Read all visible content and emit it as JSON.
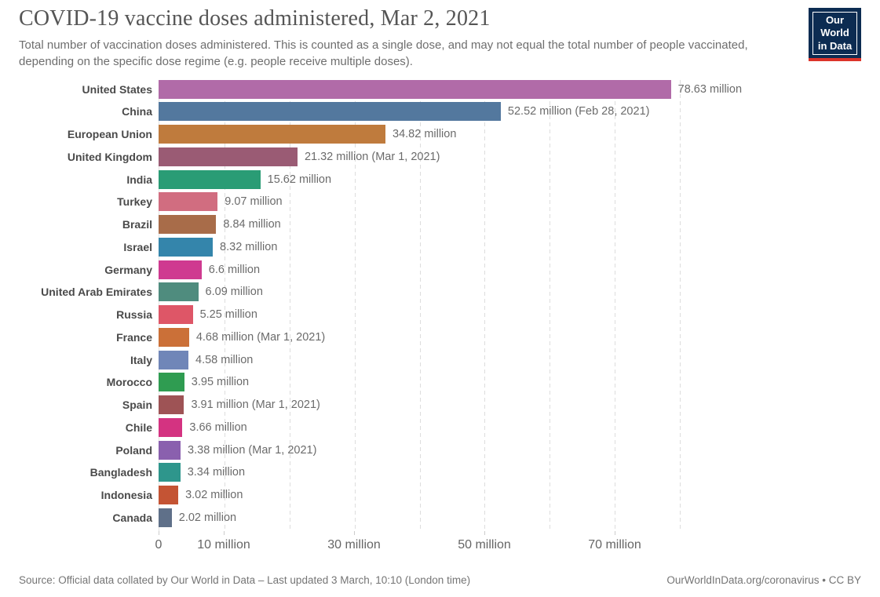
{
  "header": {
    "title": "COVID-19 vaccine doses administered, Mar 2, 2021",
    "subtitle": "Total number of vaccination doses administered. This is counted as a single dose, and may not equal the total number of people vaccinated, depending on the specific dose regime (e.g. people receive multiple doses).",
    "logo": {
      "line1": "Our World",
      "line2": "in Data",
      "bg_color": "#0c2c52",
      "accent_color": "#dc342a"
    }
  },
  "chart_data": {
    "type": "bar",
    "orientation": "horizontal",
    "title": "COVID-19 vaccine doses administered, Mar 2, 2021",
    "unit": "million doses",
    "xlim": [
      0,
      80
    ],
    "grid": "dashed vertical every 10 million",
    "x_ticks": [
      {
        "value": 0,
        "label": "0"
      },
      {
        "value": 10,
        "label": "10 million"
      },
      {
        "value": 30,
        "label": "30 million"
      },
      {
        "value": 50,
        "label": "50 million"
      },
      {
        "value": 70,
        "label": "70 million"
      }
    ],
    "series": [
      {
        "country": "United States",
        "value": 78.63,
        "label": "78.63 million",
        "color": "#b16ba8"
      },
      {
        "country": "China",
        "value": 52.52,
        "label": "52.52 million (Feb 28, 2021)",
        "color": "#53789e"
      },
      {
        "country": "European Union",
        "value": 34.82,
        "label": "34.82 million",
        "color": "#bf7b3d"
      },
      {
        "country": "United Kingdom",
        "value": 21.32,
        "label": "21.32 million (Mar 1, 2021)",
        "color": "#9a5b74"
      },
      {
        "country": "India",
        "value": 15.62,
        "label": "15.62 million",
        "color": "#2a9c75"
      },
      {
        "country": "Turkey",
        "value": 9.07,
        "label": "9.07 million",
        "color": "#d16d80"
      },
      {
        "country": "Brazil",
        "value": 8.84,
        "label": "8.84 million",
        "color": "#a86c49"
      },
      {
        "country": "Israel",
        "value": 8.32,
        "label": "8.32 million",
        "color": "#3485ab"
      },
      {
        "country": "Germany",
        "value": 6.6,
        "label": "6.6 million",
        "color": "#cf3a90"
      },
      {
        "country": "United Arab Emirates",
        "value": 6.09,
        "label": "6.09 million",
        "color": "#4f8c7e"
      },
      {
        "country": "Russia",
        "value": 5.25,
        "label": "5.25 million",
        "color": "#de5667"
      },
      {
        "country": "France",
        "value": 4.68,
        "label": "4.68 million (Mar 1, 2021)",
        "color": "#cb7038"
      },
      {
        "country": "Italy",
        "value": 4.58,
        "label": "4.58 million",
        "color": "#7086b8"
      },
      {
        "country": "Morocco",
        "value": 3.95,
        "label": "3.95 million",
        "color": "#2f9c51"
      },
      {
        "country": "Spain",
        "value": 3.91,
        "label": "3.91 million (Mar 1, 2021)",
        "color": "#9e5355"
      },
      {
        "country": "Chile",
        "value": 3.66,
        "label": "3.66 million",
        "color": "#d43381"
      },
      {
        "country": "Poland",
        "value": 3.38,
        "label": "3.38 million (Mar 1, 2021)",
        "color": "#8a60ae"
      },
      {
        "country": "Bangladesh",
        "value": 3.34,
        "label": "3.34 million",
        "color": "#2e968c"
      },
      {
        "country": "Indonesia",
        "value": 3.02,
        "label": "3.02 million",
        "color": "#c45434"
      },
      {
        "country": "Canada",
        "value": 2.02,
        "label": "2.02 million",
        "color": "#5f7089"
      }
    ]
  },
  "footer": {
    "source": "Source: Official data collated by Our World in Data – Last updated 3 March, 10:10 (London time)",
    "attribution": "OurWorldInData.org/coronavirus • CC BY"
  }
}
